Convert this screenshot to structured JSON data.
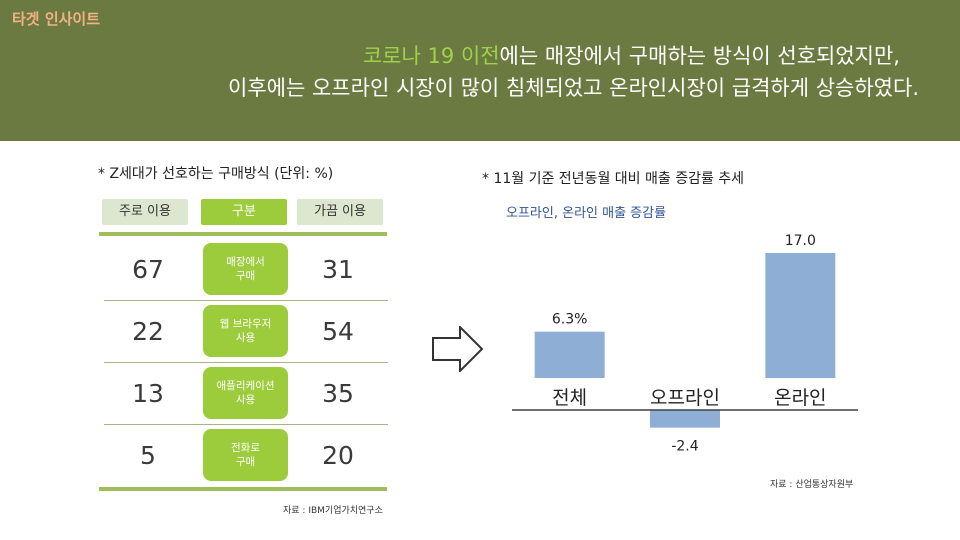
{
  "brand": "타겟 인사이트",
  "headline": {
    "line1_accent": "코로나 19 이전",
    "line1_rest": "에는 매장에서 구매하는 방식이 선호되었지만,",
    "line2": "이후에는 오프라인 시장이 많이 침체되었고 온라인시장이 급격하게 상승하였다."
  },
  "left_table": {
    "title": "* Z세대가 선호하는 구매방식 (단위: %)",
    "headers": {
      "main": "주로 이용",
      "method": "구분",
      "sub": "가끔 이용"
    },
    "rows": [
      {
        "main": "67",
        "method_l1": "매장에서",
        "method_l2": "구매",
        "sub": "31"
      },
      {
        "main": "22",
        "method_l1": "웹 브라우저",
        "method_l2": "사용",
        "sub": "54"
      },
      {
        "main": "13",
        "method_l1": "애플리케이션",
        "method_l2": "사용",
        "sub": "35"
      },
      {
        "main": "5",
        "method_l1": "전화로",
        "method_l2": "구매",
        "sub": "20"
      }
    ],
    "source": "자료 : IBM기업가치연구소"
  },
  "right_title": "* 11월 기준 전년동월 대비 매출 증감률 추세",
  "chart_data": {
    "type": "bar",
    "title": "오프라인, 온라인 매출 증감률",
    "categories": [
      "전체",
      "오프라인",
      "온라인"
    ],
    "values": [
      6.3,
      -2.4,
      17.0
    ],
    "value_labels": [
      "6.3%",
      "-2.4",
      "17.0"
    ],
    "xlabel": "",
    "ylabel": "",
    "grid": false,
    "bar_color": "#8faed6",
    "axis_color": "#404040"
  },
  "source_right": "자료 : 산업통상자원부",
  "colors": {
    "header_bg": "#6b7a40",
    "accent_green": "#9ccc3c",
    "brand_orange": "#f4b183",
    "subtitle_blue": "#2f5597"
  }
}
